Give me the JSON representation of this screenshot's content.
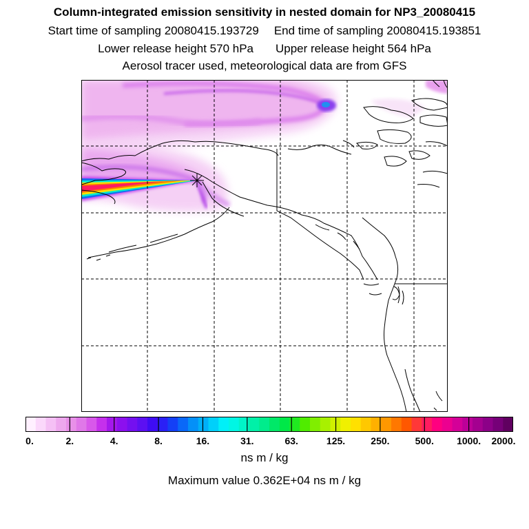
{
  "titles": {
    "main": "Column-integrated emission sensitivity in nested domain for NP3_20080415",
    "sampling_start": "Start time of sampling 20080415.193729",
    "sampling_end": "End time of sampling 20080415.193851",
    "lower_release": "Lower release height  570 hPa",
    "upper_release": "Upper release height  564 hPa",
    "tracer_info": "Aerosol tracer used, meteorological data are from GFS"
  },
  "colorbar": {
    "tick_labels": [
      "0.",
      "2.",
      "4.",
      "8.",
      "16.",
      "31.",
      "63.",
      "125.",
      "250.",
      "500.",
      "1000.",
      "2000."
    ],
    "colors": [
      "#fff0ff",
      "#fbd8fb",
      "#f5c0f5",
      "#eea8ee",
      "#e890e8",
      "#e078e8",
      "#d858ea",
      "#c530ec",
      "#a418ec",
      "#8c10ee",
      "#7410f0",
      "#5c10f2",
      "#3e0cf4",
      "#2a20f6",
      "#1440f6",
      "#0a68f8",
      "#0490f8",
      "#00b0f8",
      "#00d0fa",
      "#00f0f8",
      "#00f6e4",
      "#00f4c8",
      "#00f0a8",
      "#00ec8c",
      "#00e868",
      "#00e848",
      "#20ea20",
      "#50ec00",
      "#80ee00",
      "#a8f000",
      "#d0f000",
      "#f0f000",
      "#ffe000",
      "#ffc800",
      "#ffb000",
      "#ff9800",
      "#ff7800",
      "#ff5800",
      "#ff3838",
      "#ff1c60",
      "#ff0080",
      "#ec0090",
      "#d40098",
      "#bc0098",
      "#a40090",
      "#8c0088",
      "#760078",
      "#600060"
    ],
    "units": "ns m / kg",
    "max_value": "Maximum value  0.362E+04 ns m / kg"
  },
  "map": {
    "release_marker": "asterisk-star",
    "grid_style": "dashed",
    "coastline_color": "#000000",
    "plume_colors": [
      "#f4c8f4",
      "#e090ec",
      "#b848e8",
      "#20a0f0",
      "#ff1c60"
    ]
  }
}
